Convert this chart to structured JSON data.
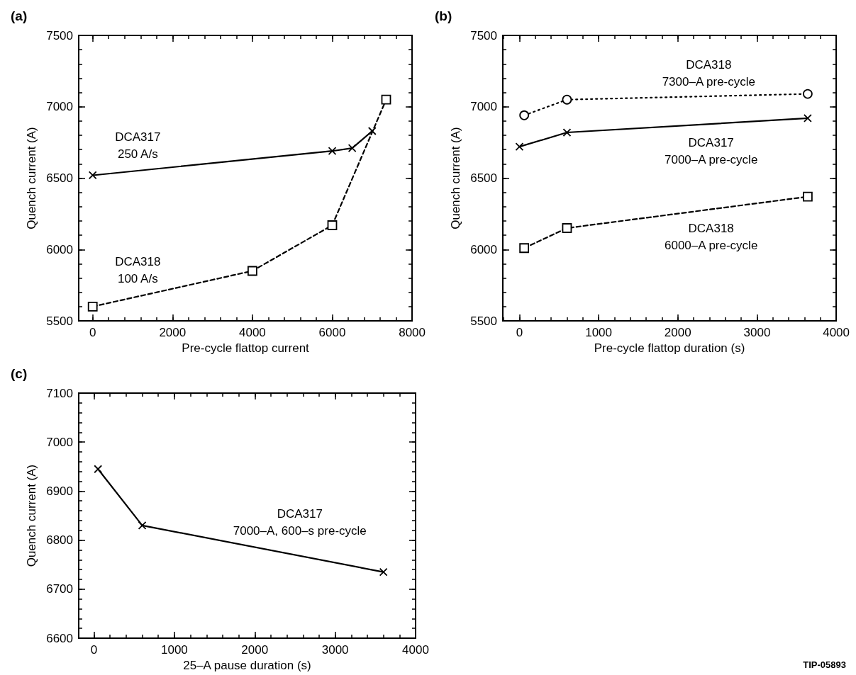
{
  "chart_data": [
    {
      "type": "line",
      "title": "(a)",
      "xlabel": "Pre-cycle flattop current",
      "ylabel": "Quench current (A)",
      "xlim": [
        -350,
        8000
      ],
      "xticks": [
        0,
        2000,
        4000,
        6000,
        8000
      ],
      "ylim": [
        5500,
        7500
      ],
      "yticks": [
        5500,
        6000,
        6500,
        7000,
        7500
      ],
      "series": [
        {
          "name": "DCA317\n250 A/s",
          "color": "#000000",
          "marker": "cross",
          "line_style": "solid",
          "x": [
            0,
            6000,
            6500,
            7000
          ],
          "values": [
            6520,
            6690,
            6710,
            6830
          ]
        },
        {
          "name": "DCA318\n100 A/s",
          "color": "#000000",
          "marker": "square",
          "line_style": "dashed",
          "x": [
            0,
            4000,
            6000,
            7350
          ],
          "values": [
            5600,
            5850,
            6170,
            7050
          ]
        }
      ]
    },
    {
      "type": "line",
      "title": "(b)",
      "xlabel": "Pre-cycle flattop duration (s)",
      "ylabel": "Quench current (A)",
      "xlim": [
        -210,
        4000
      ],
      "xticks": [
        0,
        1000,
        2000,
        3000,
        4000
      ],
      "ylim": [
        5500,
        7500
      ],
      "yticks": [
        5500,
        6000,
        6500,
        7000,
        7500
      ],
      "series": [
        {
          "name": "DCA318\n7300–A pre-cycle",
          "color": "#000000",
          "marker": "circle",
          "line_style": "dotted",
          "x": [
            60,
            600,
            3640
          ],
          "values": [
            6940,
            7050,
            7090
          ]
        },
        {
          "name": "DCA317\n7000–A pre-cycle",
          "color": "#000000",
          "marker": "cross",
          "line_style": "solid",
          "x": [
            0,
            600,
            3640
          ],
          "values": [
            6720,
            6820,
            6920
          ]
        },
        {
          "name": "DCA318\n6000–A pre-cycle",
          "color": "#000000",
          "marker": "square",
          "line_style": "dashed",
          "x": [
            60,
            600,
            3640
          ],
          "values": [
            6010,
            6150,
            6370
          ]
        }
      ]
    },
    {
      "type": "line",
      "title": "(c)",
      "xlabel": "25–A pause duration (s)",
      "ylabel": "Quench current (A)",
      "xlim": [
        -190,
        4000
      ],
      "xticks": [
        0,
        1000,
        2000,
        3000,
        4000
      ],
      "ylim": [
        6600,
        7100
      ],
      "yticks": [
        6600,
        6700,
        6800,
        6900,
        7000,
        7100
      ],
      "annotations": [
        "TIP-05893"
      ],
      "series": [
        {
          "name": "DCA317\n7000–A, 600–s pre-cycle",
          "color": "#000000",
          "marker": "cross",
          "line_style": "solid",
          "x": [
            50,
            600,
            3600
          ],
          "values": [
            6945,
            6830,
            6735
          ]
        }
      ]
    }
  ]
}
